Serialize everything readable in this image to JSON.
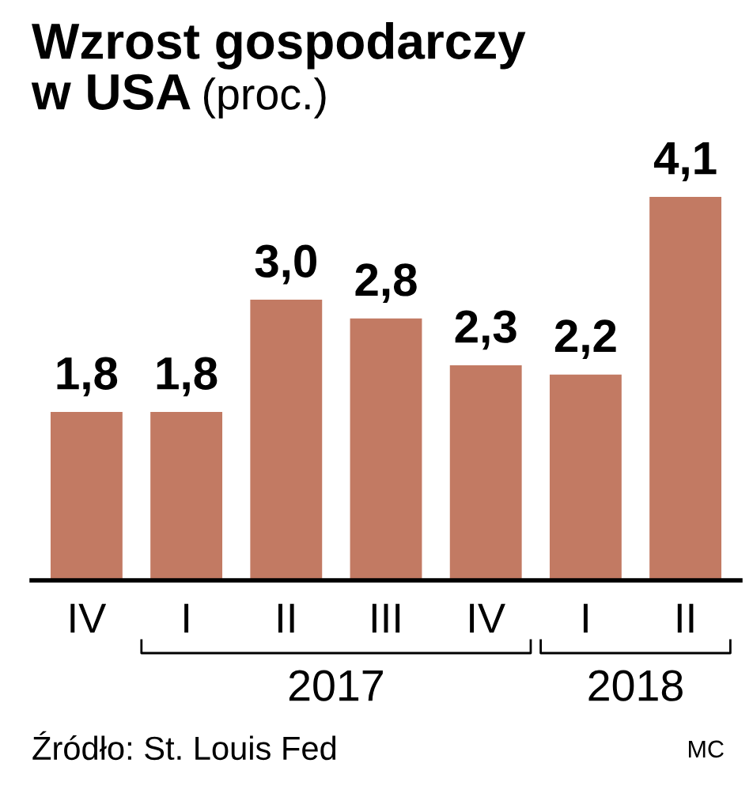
{
  "chart_data": {
    "type": "bar",
    "title": "Wzrost gospodarczy w USA",
    "subtitle": "(proc.)",
    "categories": [
      "IV",
      "I",
      "II",
      "III",
      "IV",
      "I",
      "II"
    ],
    "values": [
      1.8,
      1.8,
      3.0,
      2.8,
      2.3,
      2.2,
      4.1
    ],
    "value_labels": [
      "1,8",
      "1,8",
      "3,0",
      "2,8",
      "2,3",
      "2,2",
      "4,1"
    ],
    "color": "#c27a63",
    "grid": false,
    "legend": false,
    "annotations": [
      "2017",
      "2018",
      "Źródło: St. Louis Fed",
      "MC"
    ]
  }
}
